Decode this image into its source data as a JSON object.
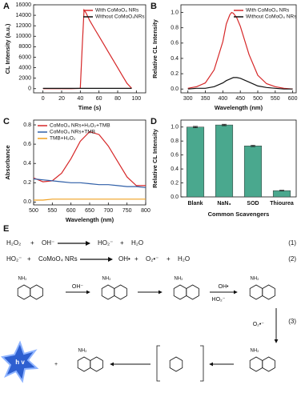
{
  "chart_data": [
    {
      "type": "line",
      "panel": "A",
      "xlabel": "Time (s)",
      "ylabel": "CL Intensity (a.u.)",
      "xlim": [
        -10,
        110
      ],
      "xticks": [
        0,
        20,
        40,
        60,
        80,
        100
      ],
      "ylim": [
        -800,
        16000
      ],
      "yticks": [
        0,
        2000,
        4000,
        6000,
        8000,
        10000,
        12000,
        14000,
        16000
      ],
      "legend": "upper right",
      "x": [
        0,
        10,
        20,
        30,
        40,
        42,
        44,
        46,
        50,
        55,
        60,
        65,
        70,
        75,
        80,
        85,
        90,
        95
      ],
      "series": [
        {
          "name": "With CoMoO₄ NRs",
          "color": "#d62728",
          "values": [
            0,
            0,
            0,
            0,
            50,
            8000,
            15000,
            14500,
            13000,
            11500,
            10000,
            8500,
            7000,
            5500,
            4000,
            2500,
            1000,
            50
          ]
        },
        {
          "name": "Without CoMoO₄NRs",
          "color": "#111111",
          "values": [
            50,
            50,
            50,
            50,
            50,
            50,
            50,
            50,
            50,
            50,
            50,
            50,
            50,
            50,
            50,
            50,
            50,
            50
          ]
        }
      ]
    },
    {
      "type": "line",
      "panel": "B",
      "xlabel": "Wavelength (nm)",
      "ylabel": "Relative CL Intensity",
      "xlim": [
        280,
        610
      ],
      "xticks": [
        300,
        350,
        400,
        450,
        500,
        550,
        600
      ],
      "ylim": [
        -0.05,
        1.1
      ],
      "yticks": [
        {
          "value": 0,
          "label": "0.0"
        },
        0.2,
        0.4,
        0.6,
        0.8,
        {
          "value": 1,
          "label": "1.0"
        }
      ],
      "legend": "upper right",
      "x": [
        300,
        325,
        350,
        375,
        400,
        410,
        420,
        425,
        430,
        440,
        450,
        475,
        500,
        525,
        550,
        575,
        600
      ],
      "series": [
        {
          "name": "With CoMoO₄ NRs",
          "color": "#d62728",
          "values": [
            0.01,
            0.03,
            0.08,
            0.25,
            0.62,
            0.85,
            0.97,
            1.0,
            0.99,
            0.93,
            0.82,
            0.45,
            0.18,
            0.07,
            0.03,
            0.01,
            0
          ]
        },
        {
          "name": "Without CoMoO₄ NRs",
          "color": "#111111",
          "values": [
            0,
            0.01,
            0.01,
            0.03,
            0.08,
            0.11,
            0.13,
            0.14,
            0.15,
            0.15,
            0.14,
            0.09,
            0.04,
            0.02,
            0.01,
            0,
            0
          ]
        }
      ]
    },
    {
      "type": "line",
      "panel": "C",
      "xlabel": "Wavelength (nm)",
      "ylabel": "Absorbance",
      "xlim": [
        500,
        800
      ],
      "xticks": [
        500,
        550,
        600,
        650,
        700,
        750,
        800
      ],
      "ylim": [
        -0.03,
        0.85
      ],
      "yticks": [
        {
          "value": 0,
          "label": "0.0"
        },
        0.2,
        0.4,
        0.6,
        0.8
      ],
      "legend": "upper left",
      "x": [
        500,
        525,
        550,
        575,
        600,
        625,
        650,
        675,
        700,
        725,
        750,
        775,
        800
      ],
      "series": [
        {
          "name": "CoMoO₄ NRs+H₂O₂+TMB",
          "color": "#d62728",
          "values": [
            0.25,
            0.21,
            0.22,
            0.3,
            0.45,
            0.63,
            0.73,
            0.7,
            0.58,
            0.42,
            0.26,
            0.17,
            0.17
          ]
        },
        {
          "name": "CoMoO₄ NRs+TMB",
          "color": "#2f5fa8",
          "values": [
            0.24,
            0.23,
            0.22,
            0.21,
            0.2,
            0.2,
            0.19,
            0.18,
            0.18,
            0.17,
            0.16,
            0.16,
            0.15
          ]
        },
        {
          "name": "TMB+H₂O₂",
          "color": "#f0a020",
          "values": [
            0.02,
            0.02,
            0.03,
            0.03,
            0.03,
            0.03,
            0.03,
            0.03,
            0.03,
            0.03,
            0.03,
            0.03,
            0.03
          ]
        }
      ]
    },
    {
      "type": "bar",
      "panel": "D",
      "xlabel": "Common Scavengers",
      "ylabel": "Relative CL Intensity",
      "ylim": [
        0,
        1.1
      ],
      "yticks": [
        {
          "value": 0,
          "label": "0.0"
        },
        0.2,
        0.4,
        0.6,
        0.8,
        {
          "value": 1,
          "label": "1.0"
        }
      ],
      "color": "#4aa88e",
      "categories": [
        "Blank",
        "NaN₃",
        "SOD",
        "Thiourea"
      ],
      "values": [
        1.0,
        1.03,
        0.73,
        0.09
      ],
      "errors": [
        0.01,
        0.01,
        0.01,
        0.005
      ]
    }
  ],
  "scheme": {
    "panel": "E",
    "equations": [
      {
        "terms": [
          "H₂O₂",
          "+",
          "OH⁻",
          "HO₂⁻",
          "+",
          "H₂O"
        ],
        "number": "(1)"
      },
      {
        "terms": [
          "HO₂⁻",
          "+",
          "CoMoO₄ NRs",
          "OH•",
          "+",
          "O₂•⁻",
          "+",
          "H₂O"
        ],
        "number": "(2)"
      }
    ],
    "step_labels": [
      "OH⁻",
      "OH•",
      "HO₂⁻",
      "O₂•⁻",
      "h v",
      "+"
    ],
    "number": "(3)",
    "amino": [
      "NH₂",
      "NH₂",
      "NH₂",
      "NH₂",
      "NH₂",
      "NH₂"
    ]
  }
}
